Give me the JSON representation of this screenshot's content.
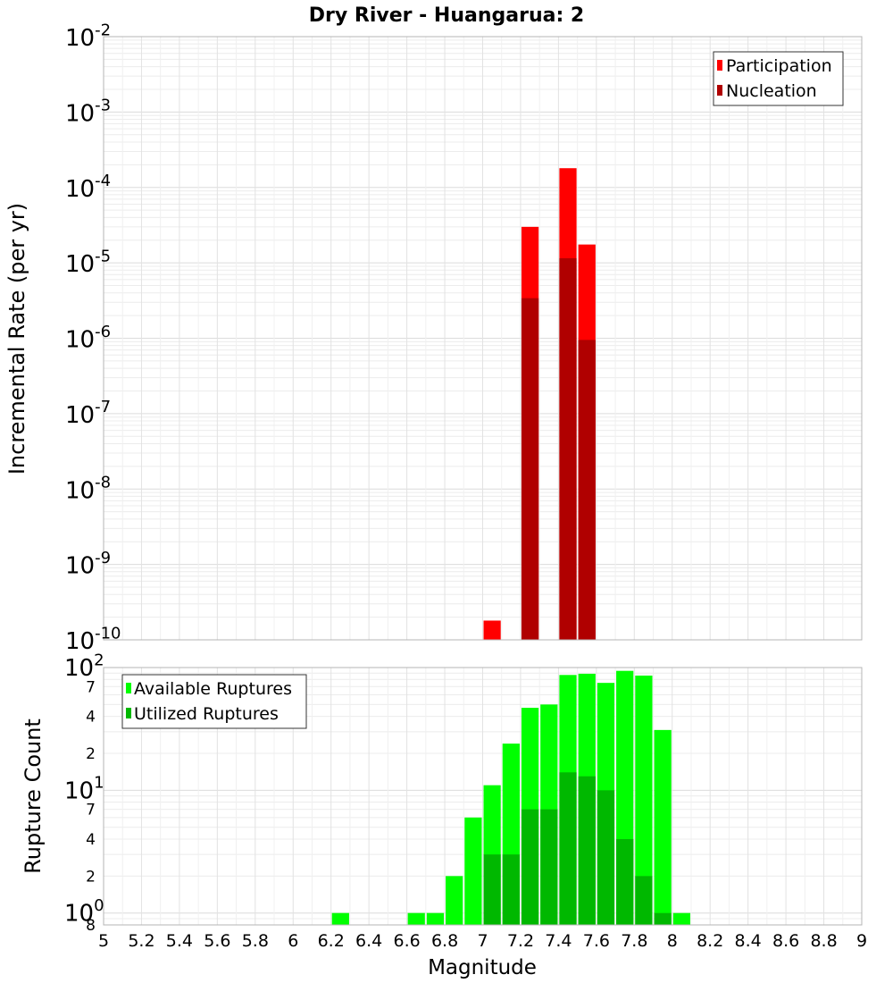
{
  "chart_data": [
    {
      "type": "bar",
      "title": "Dry River - Huangarua: 2",
      "xlabel": "",
      "ylabel": "Incremental Rate (per yr)",
      "xlim": [
        5,
        9
      ],
      "ylim": [
        1e-10,
        0.01
      ],
      "yscale": "log",
      "grid": true,
      "legend_position": "top-right",
      "y_ticks": [
        {
          "base": "10",
          "exp": "-2"
        },
        {
          "base": "10",
          "exp": "-3"
        },
        {
          "base": "10",
          "exp": "-4"
        },
        {
          "base": "10",
          "exp": "-5"
        },
        {
          "base": "10",
          "exp": "-6"
        },
        {
          "base": "10",
          "exp": "-7"
        },
        {
          "base": "10",
          "exp": "-8"
        },
        {
          "base": "10",
          "exp": "-9"
        },
        {
          "base": "10",
          "exp": "-10"
        }
      ],
      "series": [
        {
          "name": "Participation",
          "color": "#ff0000",
          "points": [
            {
              "x": 7.05,
              "y": 1.8e-10
            },
            {
              "x": 7.25,
              "y": 3e-05
            },
            {
              "x": 7.45,
              "y": 0.00018
            },
            {
              "x": 7.55,
              "y": 1.75e-05
            }
          ]
        },
        {
          "name": "Nucleation",
          "color": "#b00000",
          "points": [
            {
              "x": 7.25,
              "y": 3.4e-06
            },
            {
              "x": 7.45,
              "y": 1.15e-05
            },
            {
              "x": 7.55,
              "y": 9.5e-07
            }
          ]
        }
      ]
    },
    {
      "type": "bar",
      "title": "",
      "xlabel": "Magnitude",
      "ylabel": "Rupture Count",
      "xlim": [
        5,
        9
      ],
      "ylim": [
        0.8,
        100
      ],
      "yscale": "log",
      "grid": true,
      "legend_position": "top-left",
      "x_ticks": [
        "5",
        "5.2",
        "5.4",
        "5.6",
        "5.8",
        "6",
        "6.2",
        "6.4",
        "6.6",
        "6.8",
        "7",
        "7.2",
        "7.4",
        "7.6",
        "7.8",
        "8",
        "8.2",
        "8.4",
        "8.6",
        "8.8",
        "9"
      ],
      "y_major_ticks": [
        {
          "base": "10",
          "exp": "2"
        },
        {
          "base": "10",
          "exp": "1"
        },
        {
          "base": "10",
          "exp": "0"
        }
      ],
      "y_minor_ticks": [
        "7",
        "4",
        "2",
        "7",
        "4",
        "2",
        "8"
      ],
      "series": [
        {
          "name": "Available Ruptures",
          "color": "#00ff00",
          "points": [
            {
              "x": 6.25,
              "y": 1
            },
            {
              "x": 6.65,
              "y": 1
            },
            {
              "x": 6.75,
              "y": 1
            },
            {
              "x": 6.85,
              "y": 2
            },
            {
              "x": 6.95,
              "y": 6
            },
            {
              "x": 7.05,
              "y": 11
            },
            {
              "x": 7.15,
              "y": 24
            },
            {
              "x": 7.25,
              "y": 47
            },
            {
              "x": 7.35,
              "y": 50
            },
            {
              "x": 7.45,
              "y": 87
            },
            {
              "x": 7.55,
              "y": 89
            },
            {
              "x": 7.65,
              "y": 75
            },
            {
              "x": 7.75,
              "y": 94
            },
            {
              "x": 7.85,
              "y": 86
            },
            {
              "x": 7.95,
              "y": 31
            },
            {
              "x": 8.05,
              "y": 1
            }
          ]
        },
        {
          "name": "Utilized Ruptures",
          "color": "#00b800",
          "points": [
            {
              "x": 7.05,
              "y": 3
            },
            {
              "x": 7.15,
              "y": 3
            },
            {
              "x": 7.25,
              "y": 7
            },
            {
              "x": 7.35,
              "y": 7
            },
            {
              "x": 7.45,
              "y": 14
            },
            {
              "x": 7.55,
              "y": 13
            },
            {
              "x": 7.65,
              "y": 10
            },
            {
              "x": 7.75,
              "y": 4
            },
            {
              "x": 7.85,
              "y": 2
            },
            {
              "x": 7.95,
              "y": 1
            }
          ]
        }
      ]
    }
  ]
}
